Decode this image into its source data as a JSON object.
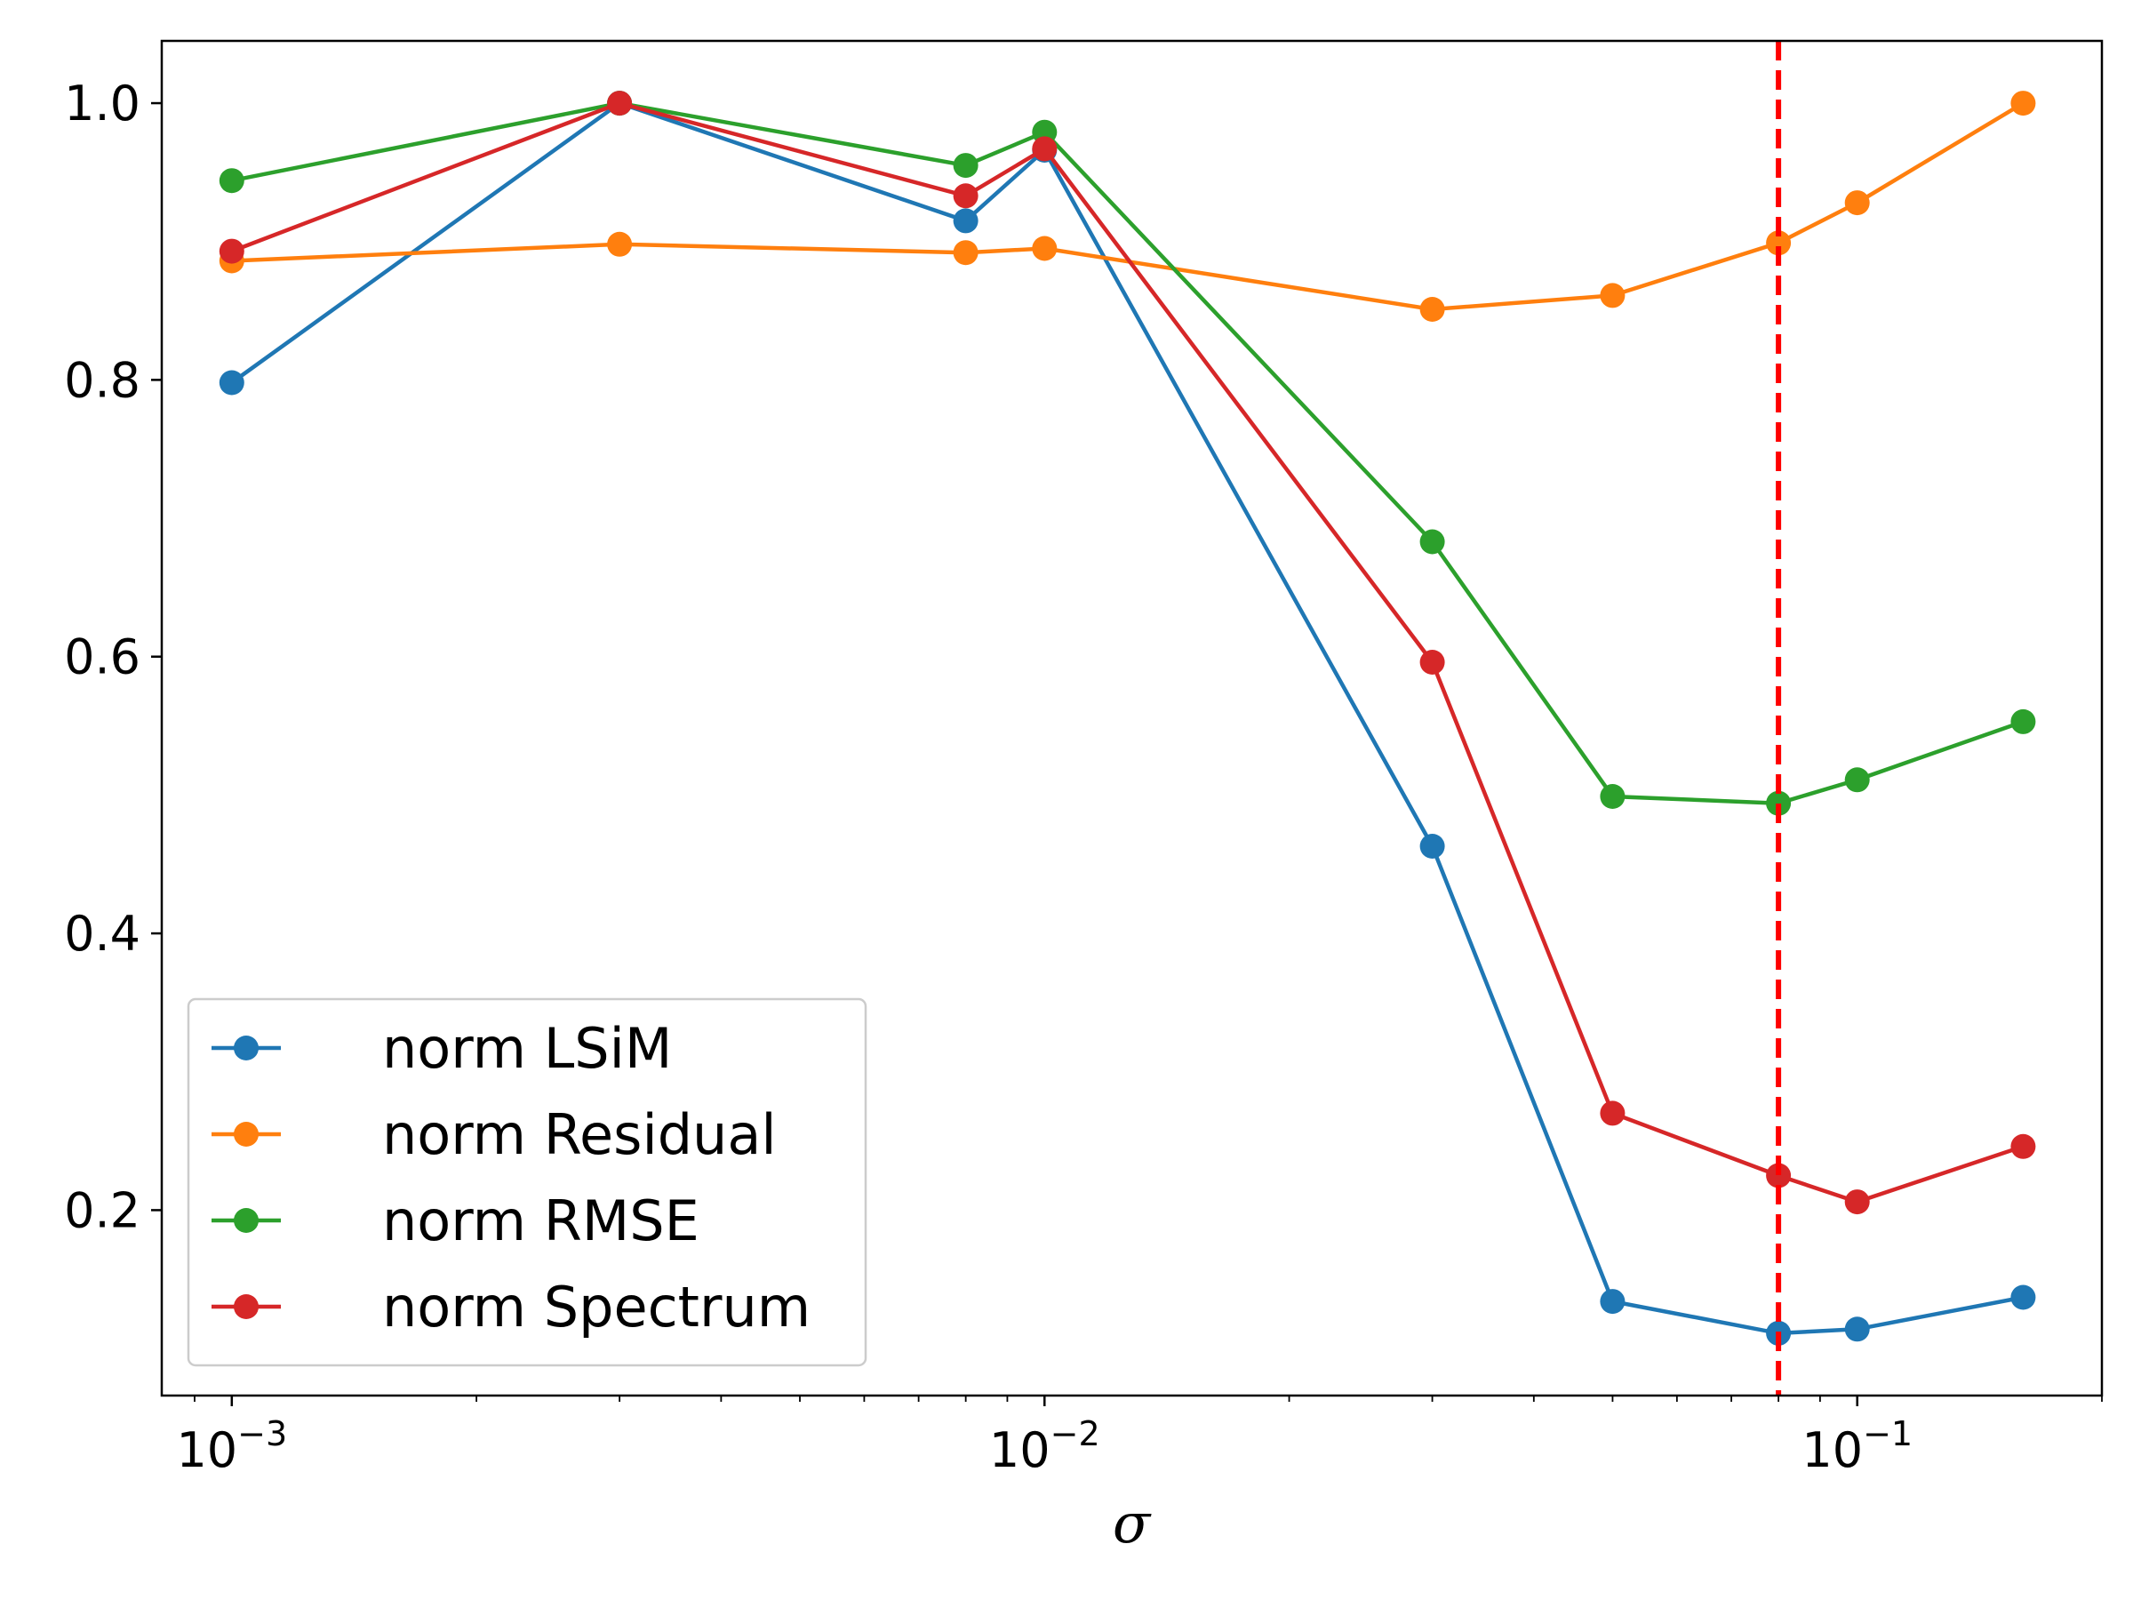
{
  "chart_data": {
    "type": "line",
    "xscale": "log",
    "xlabel": "σ",
    "ylabel": "",
    "title": "",
    "xlim": [
      0.00082,
      0.2
    ],
    "ylim": [
      0.066,
      1.045
    ],
    "x": [
      0.001,
      0.003,
      0.008,
      0.01,
      0.03,
      0.05,
      0.08,
      0.1,
      0.16
    ],
    "series": [
      {
        "name": "norm LSiM",
        "color": "#1f77b4",
        "values": [
          0.798,
          1.0,
          0.915,
          0.966,
          0.463,
          0.134,
          0.111,
          0.114,
          0.137
        ]
      },
      {
        "name": "norm Residual",
        "color": "#ff7f0e",
        "values": [
          0.886,
          0.898,
          0.892,
          0.895,
          0.851,
          0.861,
          0.899,
          0.928,
          1.0
        ]
      },
      {
        "name": "norm RMSE",
        "color": "#2ca02c",
        "values": [
          0.944,
          1.0,
          0.955,
          0.979,
          0.683,
          0.499,
          0.494,
          0.511,
          0.553
        ]
      },
      {
        "name": "norm Spectrum",
        "color": "#d62728",
        "values": [
          0.893,
          1.0,
          0.933,
          0.967,
          0.596,
          0.27,
          0.225,
          0.206,
          0.246
        ]
      }
    ],
    "yticks": [
      0.2,
      0.4,
      0.6,
      0.8,
      1.0
    ],
    "ytick_labels": [
      "0.2",
      "0.4",
      "0.6",
      "0.8",
      "1.0"
    ],
    "xticks": [
      0.001,
      0.01,
      0.1
    ],
    "xtick_labels": [
      {
        "base": "10",
        "exp": "−3"
      },
      {
        "base": "10",
        "exp": "−2"
      },
      {
        "base": "10",
        "exp": "−1"
      }
    ],
    "vline": {
      "x": 0.08,
      "color": "#ff0000",
      "style": "dashed"
    },
    "legend_position": "lower-left",
    "grid": false
  }
}
